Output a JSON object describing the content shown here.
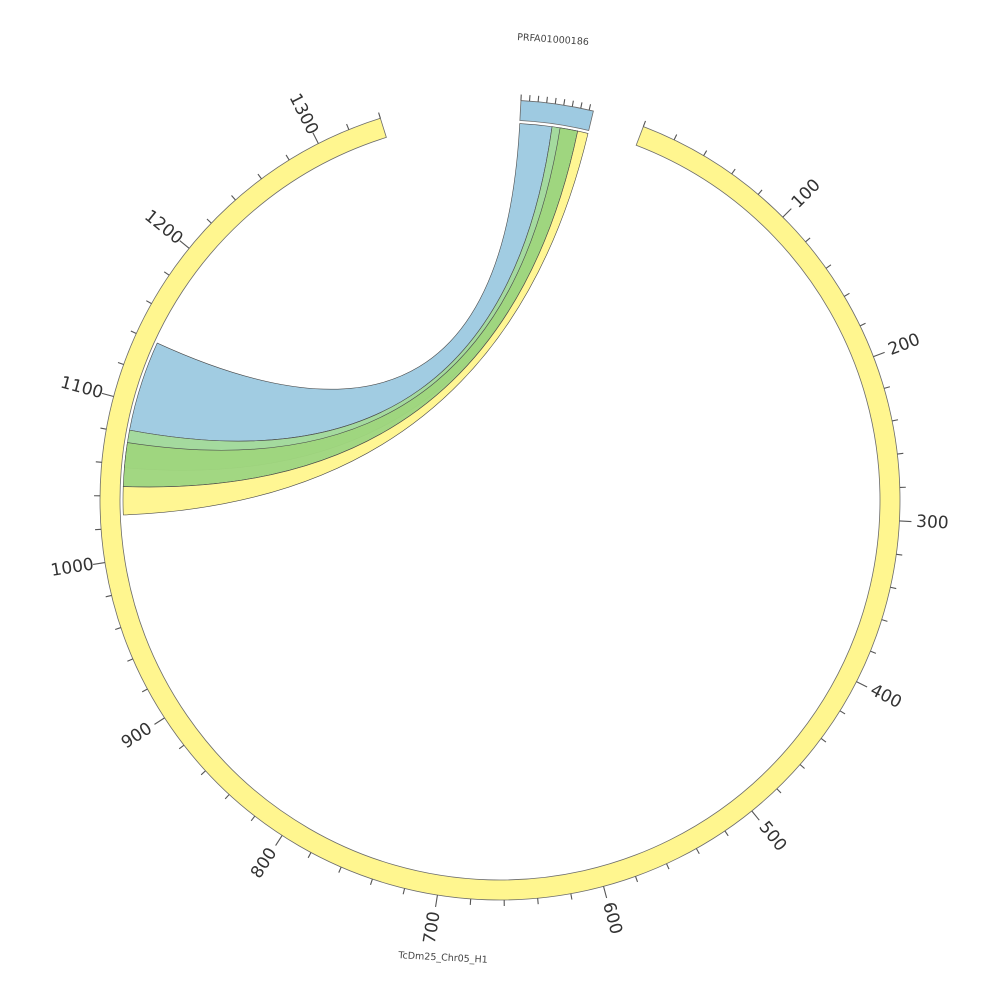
{
  "chromosomes": [
    {
      "id": "prfa",
      "name": "PRFA01000186",
      "length": 85,
      "color": "#9ecae1"
    },
    {
      "id": "tcdm",
      "name": "TcDm25_Chr05_H1",
      "length": 1340,
      "color": "#fff68f"
    }
  ],
  "ticks": [
    {
      "value": 100,
      "label": "100"
    },
    {
      "value": 200,
      "label": "200"
    },
    {
      "value": 300,
      "label": "300"
    },
    {
      "value": 400,
      "label": "400"
    },
    {
      "value": 500,
      "label": "500"
    },
    {
      "value": 600,
      "label": "600"
    },
    {
      "value": 700,
      "label": "700"
    },
    {
      "value": 800,
      "label": "800"
    },
    {
      "value": 900,
      "label": "900"
    },
    {
      "value": 1000,
      "label": "1000"
    },
    {
      "value": 1100,
      "label": "1100"
    },
    {
      "value": 1200,
      "label": "1200"
    },
    {
      "value": 1300,
      "label": "1300"
    }
  ],
  "links": [
    {
      "name": "link-blue",
      "color": "#9ecae1",
      "source": [
        0,
        40
      ],
      "target": [
        1082,
        1140
      ]
    },
    {
      "name": "link-green-light",
      "color": "#a1d99b",
      "source": [
        40,
        72
      ],
      "target": [
        1058,
        1082
      ]
    },
    {
      "name": "link-green",
      "color": "#9fd67e",
      "source": [
        50,
        72
      ],
      "target": [
        1046,
        1074
      ]
    },
    {
      "name": "link-yellow",
      "color": "#fff68f",
      "source": [
        72,
        85
      ],
      "target": [
        1028,
        1046
      ]
    }
  ]
}
